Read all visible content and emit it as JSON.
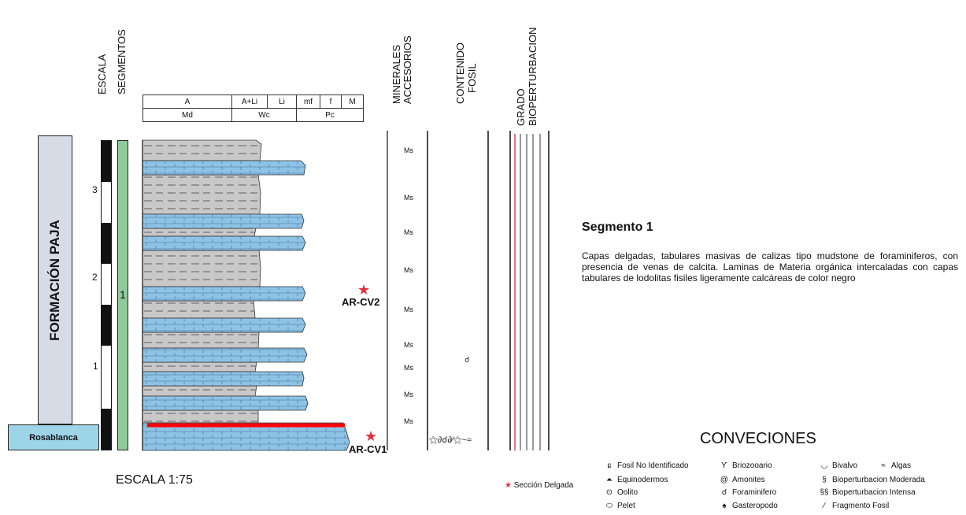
{
  "headers": {
    "escala": "ESCALA",
    "segmentos": "SEGMENTOS",
    "minerales": [
      "MINERALES",
      "ACCESORIOS"
    ],
    "contenido": [
      "CONTENIDO",
      "FOSIL"
    ],
    "grado": [
      "GRADO",
      "BIOPERTURBACION"
    ]
  },
  "texture_header": {
    "row1": [
      "A",
      "A+Li",
      "Li",
      "mf",
      "f",
      "M"
    ],
    "row2": [
      "Md",
      "Wc",
      "Pc"
    ]
  },
  "formation": "FORMACIÓN PAJA",
  "base_unit": "Rosablanca",
  "segment_number": "1",
  "scale_ticks": [
    "3",
    "2",
    "1"
  ],
  "minerals": [
    "Ms",
    "Ms",
    "Ms",
    "Ms",
    "Ms",
    "Ms",
    "Ms",
    "Ms",
    "Ms"
  ],
  "samples": [
    "AR-CV2",
    "AR-CV1"
  ],
  "scale_text": "ESCALA 1:75",
  "description": {
    "title": "Segmento 1",
    "body": "Capas delgadas, tabulares masivas de calizas tipo mudstone de foraminiferos, con presencia de venas de calcita. Laminas de Materia orgánica intercaladas con capas tabulares de lodolitas fisiles ligeramente calcáreas de color negro"
  },
  "legend": {
    "title": "CONVECIONES",
    "thin_section": "Sección Delgada",
    "col1": [
      "Fosil No Identificado",
      "Equinodermos",
      "Oolito",
      "Pelet"
    ],
    "col2": [
      "Briozooario",
      "Amonites",
      "Foraminifero",
      "Gasteropodo"
    ],
    "col3": [
      "Bivalvo",
      "Algas",
      "Bioperturbacion Moderada",
      "Bioperturbacion Intensa",
      "Fragmento Fosil"
    ]
  },
  "colors": {
    "limestone": "#8ec3e6",
    "shale": "#c8c8c8",
    "segment": "#8fcb9b",
    "formation": "#d6dbe6",
    "base": "#9ed4e8",
    "star": "#e03040",
    "red_line": "#ff0000"
  }
}
